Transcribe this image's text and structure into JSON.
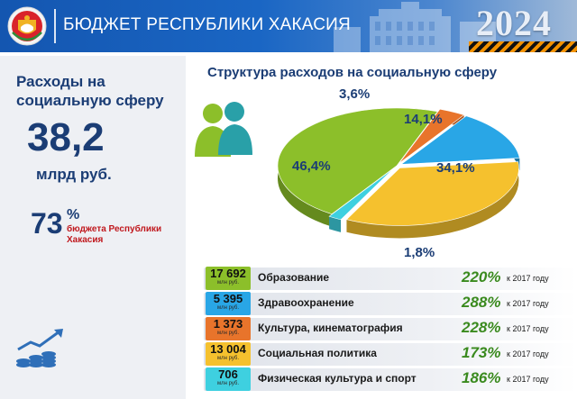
{
  "header": {
    "title": "БЮДЖЕТ РЕСПУБЛИКИ ХАКАСИЯ",
    "year": "2024"
  },
  "summary": {
    "title": "Расходы на социальную сферу",
    "value": "38,2",
    "unit": "млрд руб.",
    "share_value": "73",
    "share_sign": "%",
    "share_note": "бюджета Республики Хакасия"
  },
  "chart_data": {
    "type": "pie",
    "title": "Структура расходов на социальную сферу",
    "slices": [
      {
        "label": "46,4%",
        "value": 46.4,
        "color": "#8cbf2a"
      },
      {
        "label": "3,6%",
        "value": 3.6,
        "color": "#e8742b"
      },
      {
        "label": "14,1%",
        "value": 14.1,
        "color": "#29a6e6"
      },
      {
        "label": "34,1%",
        "value": 34.1,
        "color": "#f5c12e"
      },
      {
        "label": "1,8%",
        "value": 1.8,
        "color": "#3ed0e0"
      }
    ]
  },
  "rows": [
    {
      "amount": "17 692",
      "unit": "млн руб.",
      "label": "Образование",
      "growth": "220%",
      "note": "к 2017 году",
      "color": "#8cbf2a"
    },
    {
      "amount": "5 395",
      "unit": "млн руб.",
      "label": "Здравоохранение",
      "growth": "288%",
      "note": "к 2017 году",
      "color": "#29a6e6"
    },
    {
      "amount": "1 373",
      "unit": "млн руб.",
      "label": "Культура, кинематография",
      "growth": "228%",
      "note": "к 2017 году",
      "color": "#e8742b"
    },
    {
      "amount": "13 004",
      "unit": "млн руб.",
      "label": "Социальная политика",
      "growth": "173%",
      "note": "к 2017 году",
      "color": "#f5c12e"
    },
    {
      "amount": "706",
      "unit": "млн руб.",
      "label": "Физическая культура и спорт",
      "growth": "186%",
      "note": "к 2017 году",
      "color": "#3ed0e0"
    }
  ]
}
